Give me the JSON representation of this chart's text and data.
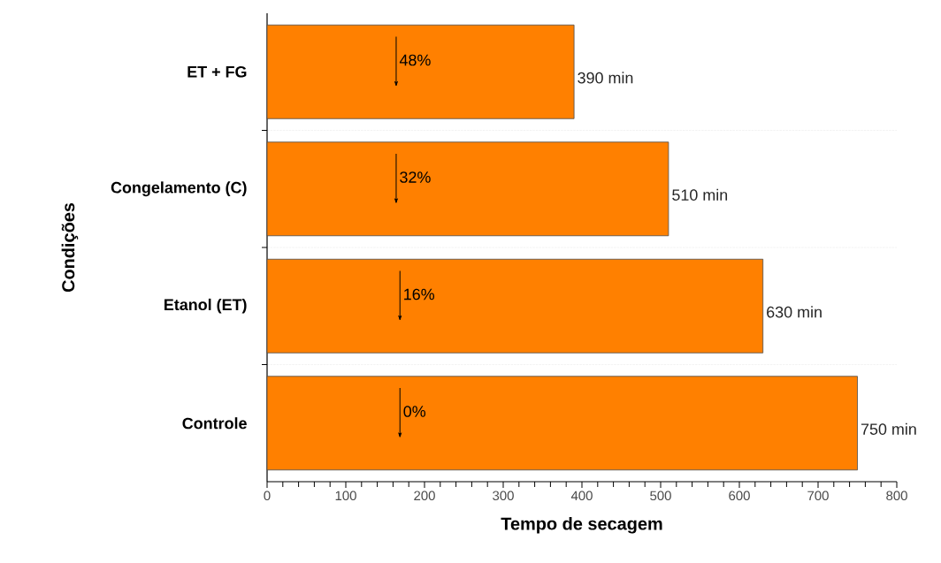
{
  "chart_data": {
    "type": "bar",
    "orientation": "horizontal",
    "xlabel": "Tempo de secagem",
    "ylabel": "Condições",
    "categories": [
      "ET + FG",
      "Congelamento (C)",
      "Etanol (ET)",
      "Controle"
    ],
    "values": [
      390,
      510,
      630,
      750
    ],
    "color": "#ff8000",
    "value_labels": [
      "390 min",
      "510 min",
      "630 min",
      "750 min"
    ],
    "xlim": [
      0,
      800
    ],
    "xticks": [
      0,
      100,
      200,
      300,
      400,
      500,
      600,
      700,
      800
    ],
    "grid": "y",
    "annotations": [
      "48%",
      "32%",
      "16%",
      "0%"
    ]
  }
}
